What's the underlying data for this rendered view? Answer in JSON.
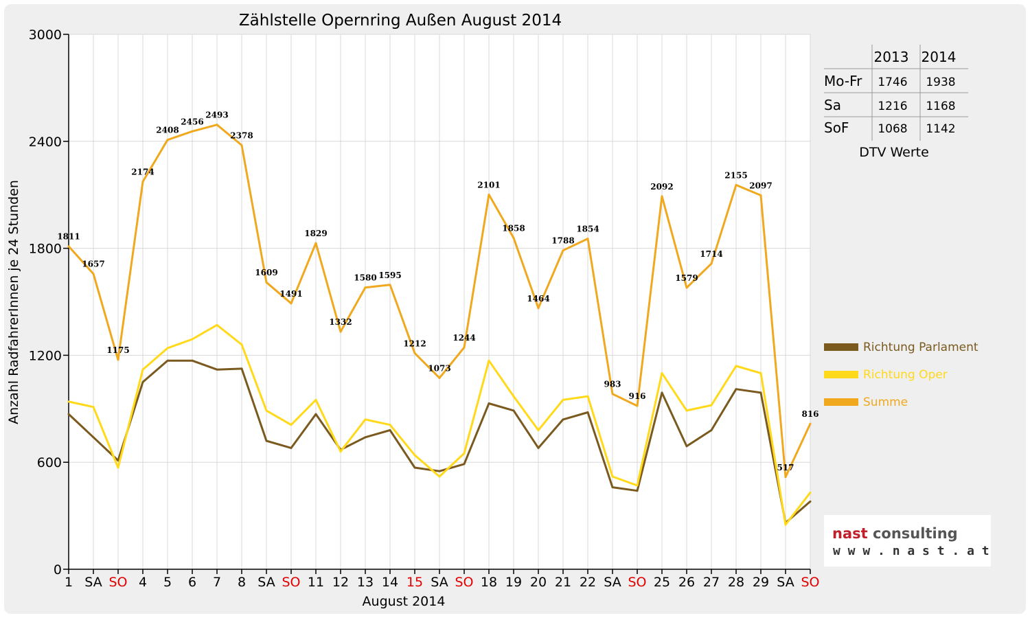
{
  "chart_data": {
    "type": "line",
    "title": "Zählstelle Opernring Außen August 2014",
    "xlabel": "August 2014",
    "ylabel": "Anzahl RadfahrerInnen je 24 Stunden",
    "ylim": [
      0,
      3000
    ],
    "yticks": [
      0,
      600,
      1200,
      1800,
      2400,
      3000
    ],
    "grid": true,
    "legend_position": "right",
    "categories": [
      "1",
      "SA",
      "SO",
      "4",
      "5",
      "6",
      "7",
      "8",
      "SA",
      "SO",
      "11",
      "12",
      "13",
      "14",
      "15",
      "SA",
      "SO",
      "18",
      "19",
      "20",
      "21",
      "22",
      "SA",
      "SO",
      "25",
      "26",
      "27",
      "28",
      "29",
      "SA",
      "SO"
    ],
    "category_colors": [
      "#000000",
      "#000000",
      "#e00000",
      "#000000",
      "#000000",
      "#000000",
      "#000000",
      "#000000",
      "#000000",
      "#e00000",
      "#000000",
      "#000000",
      "#000000",
      "#000000",
      "#e00000",
      "#000000",
      "#e00000",
      "#000000",
      "#000000",
      "#000000",
      "#000000",
      "#000000",
      "#000000",
      "#e00000",
      "#000000",
      "#000000",
      "#000000",
      "#000000",
      "#000000",
      "#000000",
      "#e00000"
    ],
    "series": [
      {
        "name": "Richtung Parlament",
        "color": "#7a5a1e",
        "values": [
          870,
          740,
          610,
          1050,
          1170,
          1170,
          1120,
          1125,
          720,
          680,
          870,
          670,
          740,
          780,
          570,
          550,
          590,
          930,
          890,
          680,
          840,
          880,
          460,
          440,
          990,
          690,
          780,
          1010,
          990,
          260,
          380
        ]
      },
      {
        "name": "Richtung Oper",
        "color": "#ffd91a",
        "values": [
          940,
          910,
          570,
          1120,
          1240,
          1290,
          1370,
          1260,
          890,
          810,
          950,
          660,
          840,
          810,
          640,
          520,
          650,
          1170,
          970,
          780,
          950,
          970,
          520,
          470,
          1100,
          890,
          920,
          1140,
          1100,
          250,
          430
        ]
      },
      {
        "name": "Summe",
        "color": "#f0a81e",
        "values": [
          1811,
          1657,
          1175,
          2174,
          2408,
          2456,
          2493,
          2378,
          1609,
          1491,
          1829,
          1332,
          1580,
          1595,
          1212,
          1073,
          1244,
          2101,
          1858,
          1464,
          1788,
          1854,
          983,
          916,
          2092,
          1579,
          1714,
          2155,
          2097,
          517,
          816
        ],
        "data_labels": true
      }
    ],
    "table": {
      "columns": [
        "2013",
        "2014"
      ],
      "rows": [
        {
          "label": "Mo-Fr",
          "values": [
            "1746",
            "1938"
          ]
        },
        {
          "label": "Sa",
          "values": [
            "1216",
            "1168"
          ]
        },
        {
          "label": "SoF",
          "values": [
            "1068",
            "1142"
          ]
        }
      ],
      "caption": "DTV Werte"
    }
  },
  "logo": {
    "name": "nast consulting",
    "url_text": "w w w . n a s t . a t"
  }
}
